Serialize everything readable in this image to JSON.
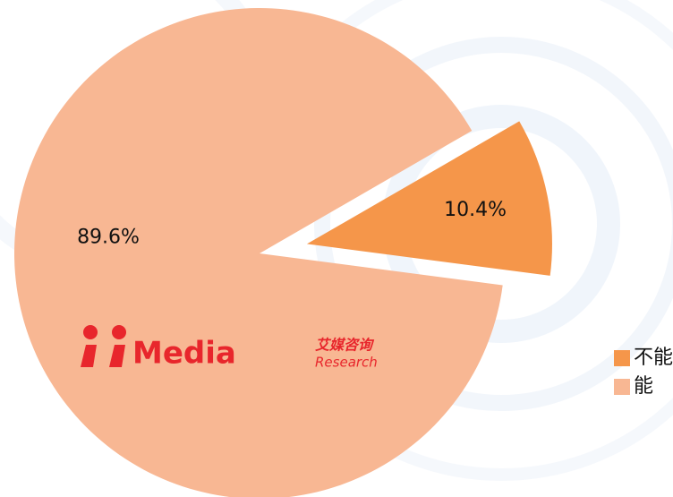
{
  "chart_data": {
    "type": "pie",
    "categories": [
      "不能",
      "能"
    ],
    "values": [
      10.4,
      89.6
    ],
    "value_labels": [
      "10.4%",
      "89.6%"
    ],
    "colors": [
      "#f5964a",
      "#f8b793"
    ],
    "legend": "right",
    "watermark": {
      "brand": "Media",
      "cn": "艾媒咨询",
      "en": "Research"
    }
  }
}
